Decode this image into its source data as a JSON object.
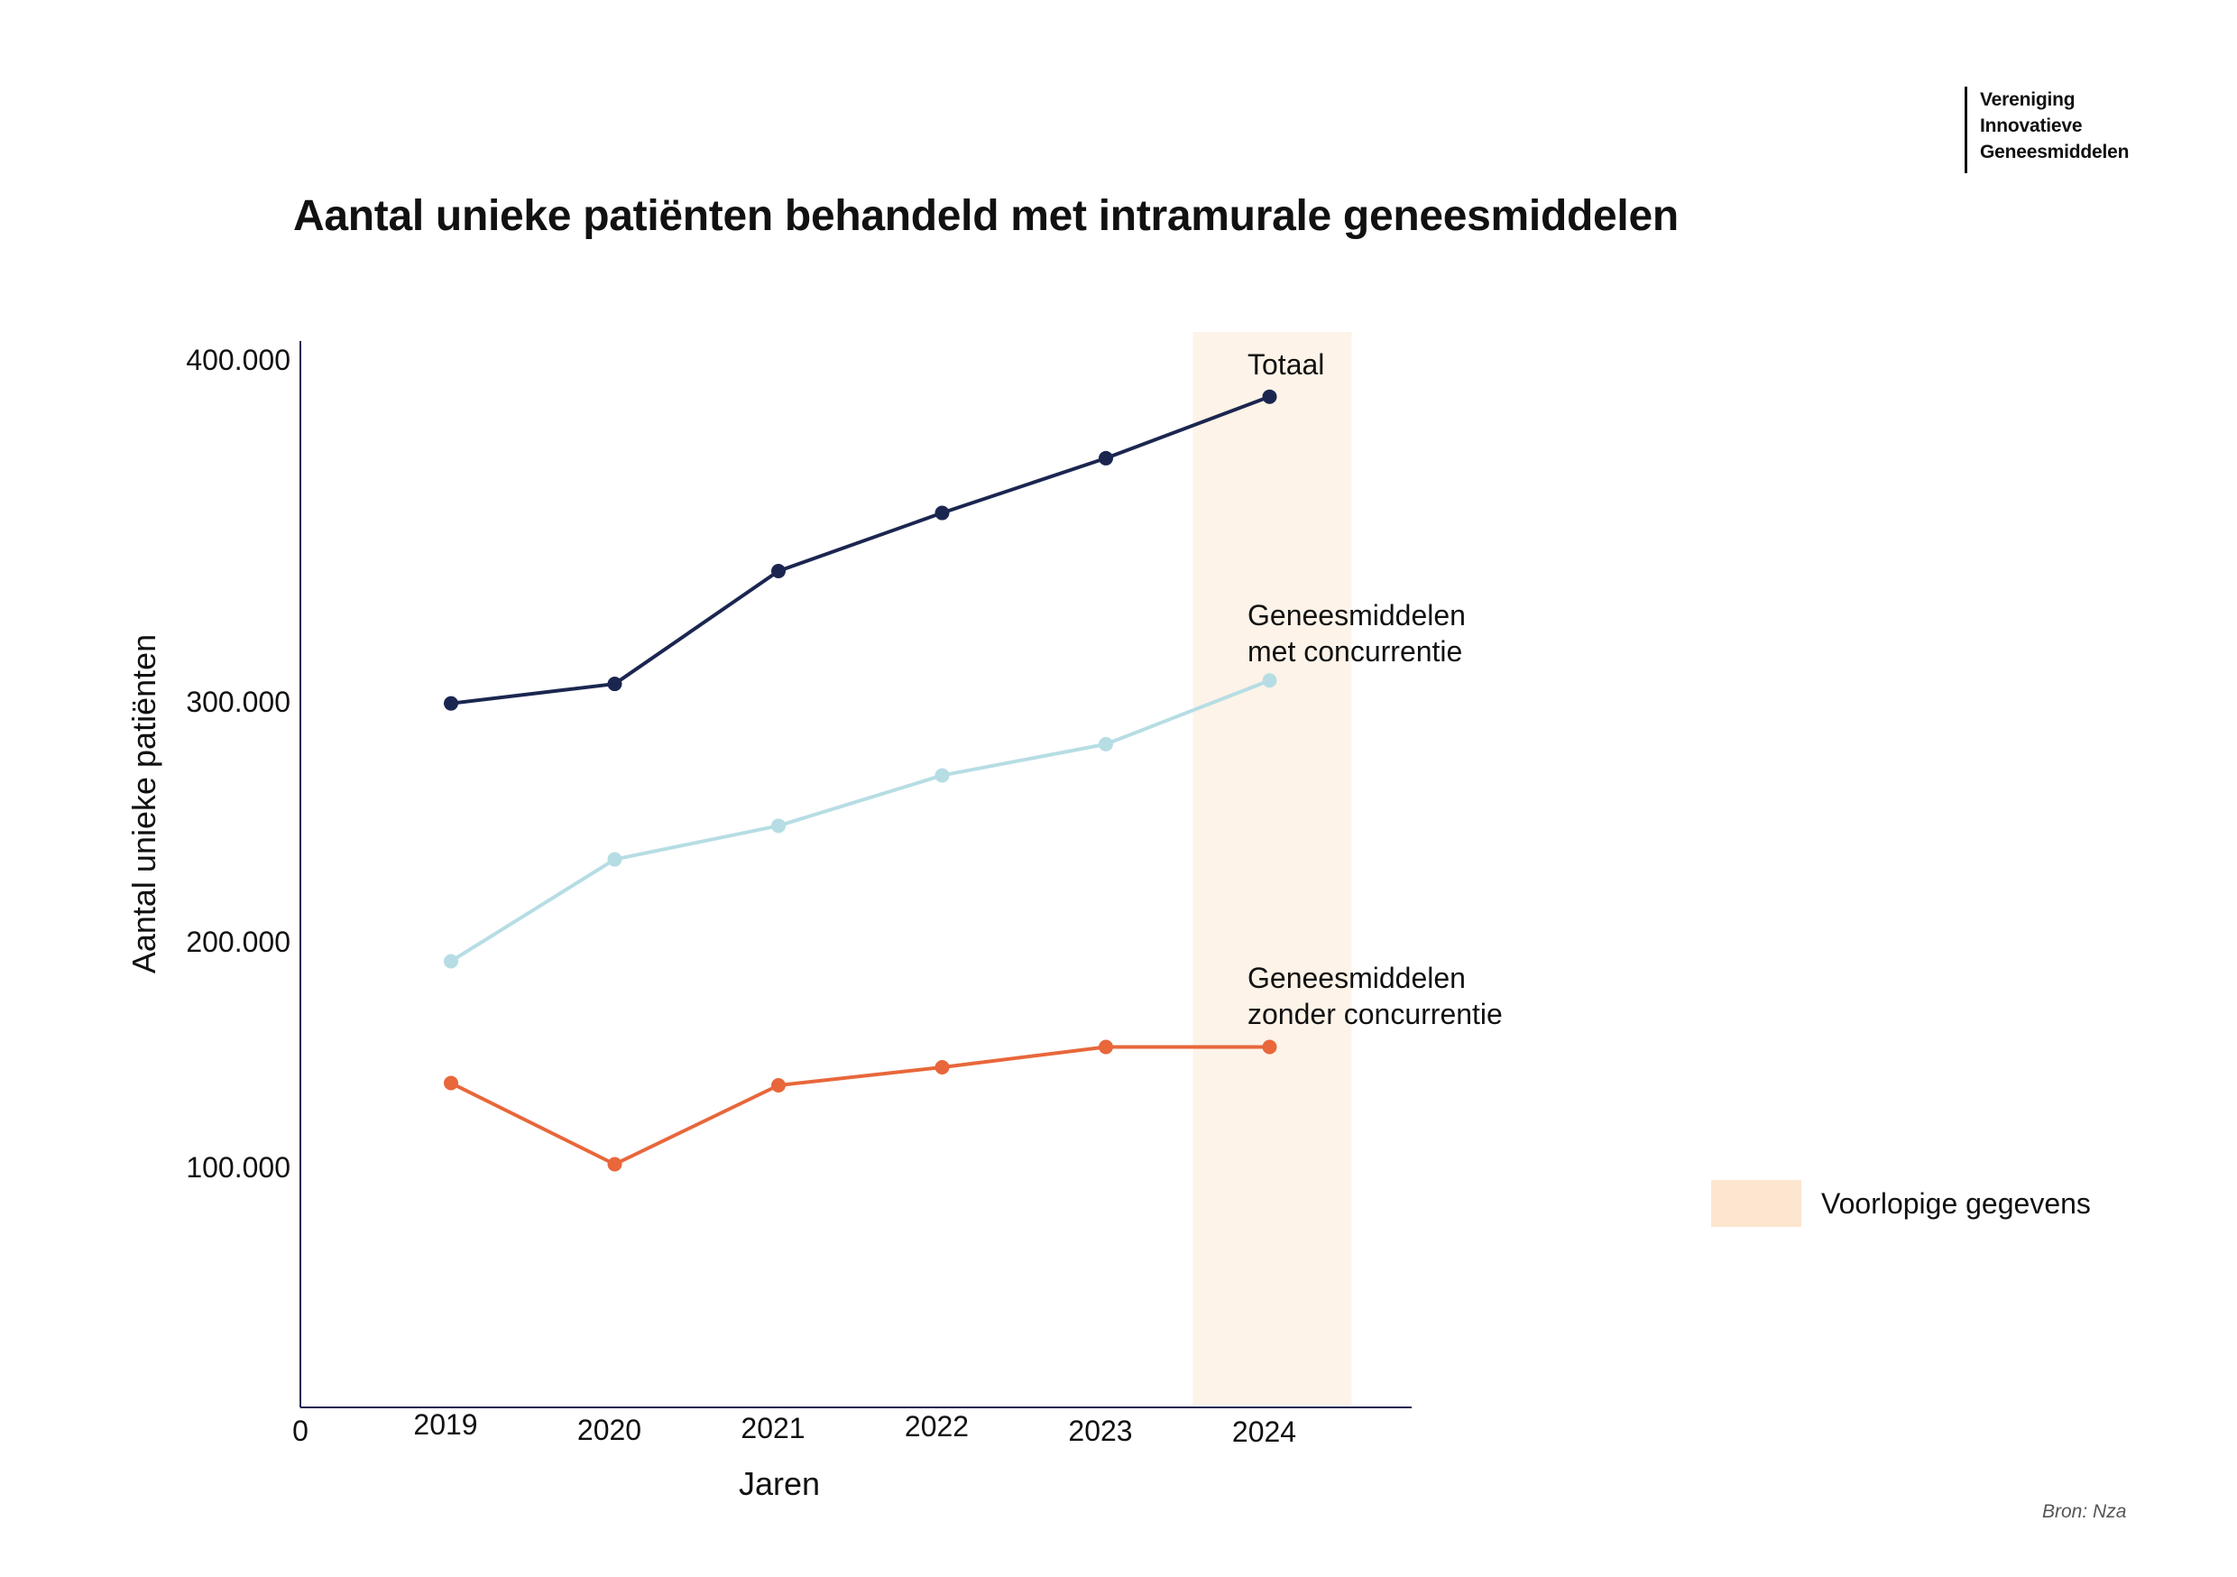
{
  "logo": {
    "lines": [
      "Vereniging",
      "Innovatieve",
      "Geneesmiddelen"
    ]
  },
  "colors": {
    "totaal": "#1b2650",
    "met_concurrentie": "#b6dde4",
    "zonder_concurrentie": "#e8673b",
    "preliminary_band": "#fdf3e8",
    "legend_swatch": "#fde6d0",
    "axis": "#1b2650"
  },
  "chart_data": {
    "type": "line",
    "title": "Aantal unieke patiënten behandeld met intramurale geneesmiddelen",
    "xlabel": "Jaren",
    "ylabel": "Aantal unieke patiënten",
    "categories": [
      "2019",
      "2020",
      "2021",
      "2022",
      "2023",
      "2024"
    ],
    "origin_label": "0",
    "y_ticks": [
      {
        "label": "100.000",
        "value": 100000
      },
      {
        "label": "200.000",
        "value": 200000
      },
      {
        "label": "300.000",
        "value": 300000
      },
      {
        "label": "400.000",
        "value": 400000
      }
    ],
    "series": [
      {
        "key": "totaal",
        "name": "Totaal",
        "label_lines": [
          "Totaal"
        ],
        "values": [
          299000,
          305000,
          338000,
          355000,
          371000,
          389000
        ]
      },
      {
        "key": "met_concurrentie",
        "name": "Geneesmiddelen met concurrentie",
        "label_lines": [
          "Geneesmiddelen",
          "met concurrentie"
        ],
        "values": [
          191000,
          234000,
          248000,
          269000,
          282000,
          306000
        ]
      },
      {
        "key": "zonder_concurrentie",
        "name": "Geneesmiddelen zonder concurrentie",
        "label_lines": [
          "Geneesmiddelen",
          "zonder concurrentie"
        ],
        "values": [
          137000,
          101000,
          136000,
          144000,
          153000,
          153000
        ]
      }
    ],
    "highlight": {
      "category": "2024",
      "label": "Voorlopige gegevens"
    },
    "grid": false,
    "legend": "right"
  },
  "source": "Bron: Nza"
}
